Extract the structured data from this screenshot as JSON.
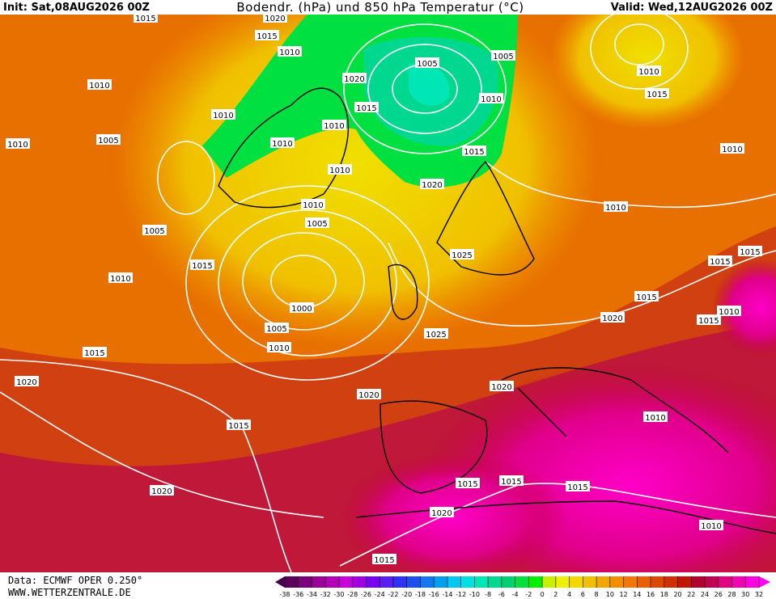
{
  "header": {
    "init": "Init: Sat,08AUG2026 00Z",
    "title": "Bodendr. (hPa) und 850 hPa Temperatur (°C)",
    "valid": "Valid: Wed,12AUG2026 00Z"
  },
  "isobar_labels": [
    "1015",
    "1020",
    "1015",
    "1010",
    "1005",
    "1005",
    "1010",
    "1020",
    "1015",
    "1010",
    "1010",
    "1015",
    "1010",
    "1010",
    "1010",
    "1005",
    "1010",
    "1015",
    "1010",
    "1010",
    "1020",
    "1010",
    "1010",
    "1005",
    "1005",
    "1015",
    "1025",
    "1015",
    "1015",
    "1010",
    "1015",
    "1000",
    "1010",
    "1015",
    "1020",
    "1005",
    "1025",
    "1010",
    "1015",
    "1020",
    "1020",
    "1020",
    "1010",
    "1015",
    "1020",
    "1015",
    "1015",
    "1015",
    "1020",
    "1010",
    "1015"
  ],
  "footer": {
    "data": "Data: ECMWF OPER 0.250°",
    "site": "WWW.WETTERZENTRALE.DE"
  },
  "colorbar": {
    "ticks": [
      -38,
      -36,
      -34,
      -32,
      -30,
      -28,
      -26,
      -24,
      -22,
      -20,
      -18,
      -16,
      -14,
      -12,
      -10,
      -8,
      -6,
      -4,
      -2,
      0,
      2,
      4,
      6,
      8,
      10,
      12,
      14,
      16,
      18,
      20,
      22,
      24,
      26,
      28,
      30,
      32
    ],
    "colors": [
      "#5a005a",
      "#7a007a",
      "#9a009a",
      "#b400b4",
      "#c800d8",
      "#a000e0",
      "#7a00f0",
      "#5a20f0",
      "#3030f0",
      "#1e50f0",
      "#1478f0",
      "#00a0f0",
      "#00c8f0",
      "#00e0e0",
      "#00e6b4",
      "#00d890",
      "#00d070",
      "#00e040",
      "#00f000",
      "#c8f000",
      "#f0f000",
      "#f0d800",
      "#f0c000",
      "#f0a800",
      "#f09000",
      "#f07800",
      "#e86000",
      "#dc4800",
      "#d03000",
      "#c01800",
      "#b00030",
      "#c00050",
      "#e00080",
      "#f000b0",
      "#ff00e0"
    ]
  }
}
